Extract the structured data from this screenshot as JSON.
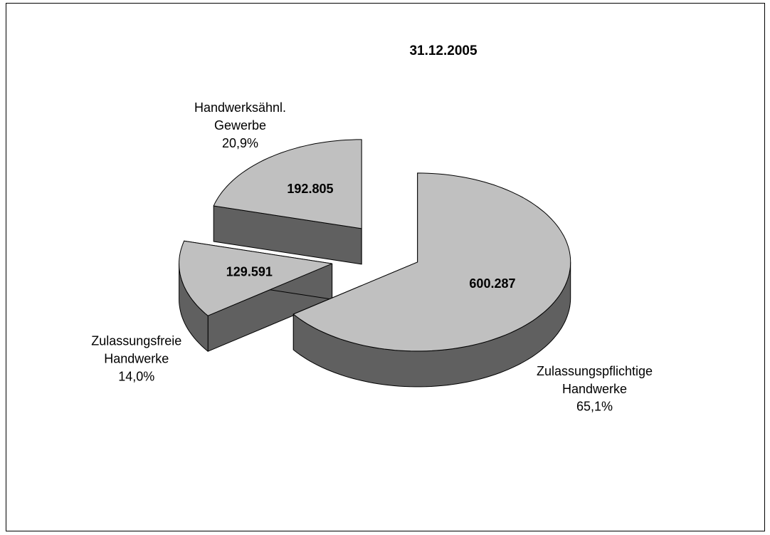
{
  "chart_data": {
    "type": "pie3d",
    "title": "31.12.2005",
    "categories": [
      "Zulassungspflichtige Handwerke",
      "Zulassungsfreie Handwerke",
      "Handwerksähnl. Gewerbe"
    ],
    "values": [
      600287,
      129591,
      192805
    ],
    "value_labels": [
      "600.287",
      "129.591",
      "192.805"
    ],
    "percent_labels": [
      "65,1%",
      "14,0%",
      "20,9%"
    ],
    "colors": [
      "#c0c0c0",
      "#c0c0c0",
      "#c0c0c0"
    ],
    "side_color": "#606060"
  }
}
